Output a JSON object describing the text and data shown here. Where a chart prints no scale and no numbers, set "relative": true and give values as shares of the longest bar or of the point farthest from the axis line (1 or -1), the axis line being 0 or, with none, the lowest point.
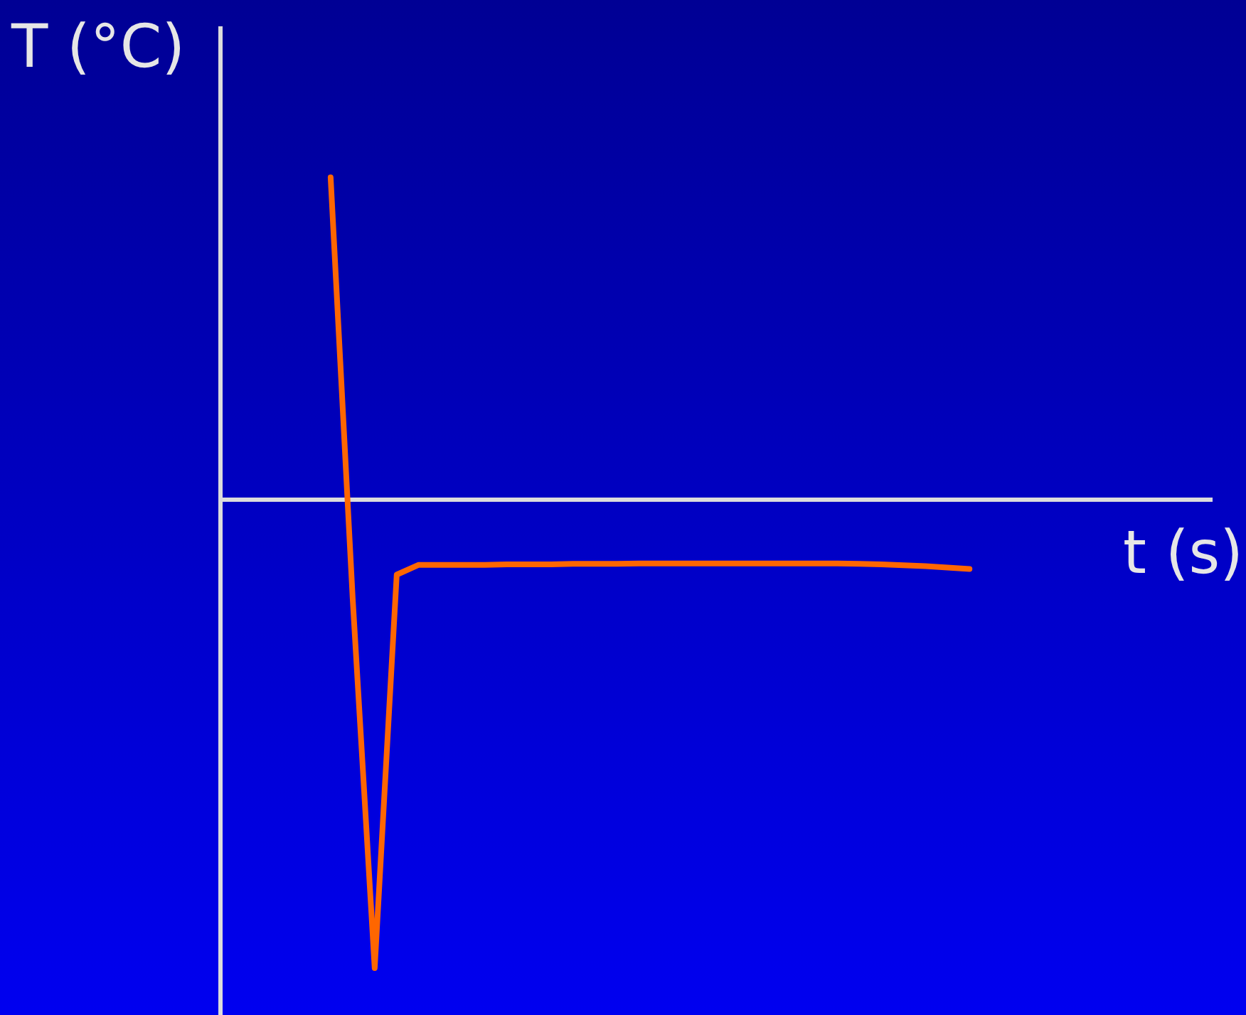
{
  "chart_data": {
    "type": "line",
    "relative": true,
    "xlabel": "t (s)",
    "ylabel": "T (°C)",
    "categories": [
      null,
      null,
      null,
      null,
      null,
      null,
      null,
      null,
      null,
      null,
      null,
      null,
      null,
      null,
      null,
      null,
      null,
      null,
      null,
      null,
      null,
      null,
      null,
      null,
      null,
      null,
      null,
      null,
      null,
      null,
      null,
      null,
      null,
      null,
      null,
      null,
      null,
      null,
      null,
      null,
      null,
      null,
      null,
      null,
      null,
      null
    ],
    "series": [
      {
        "color": "#ff6600",
        "values": [
          null,
          null,
          null,
          null,
          null,
          0.688,
          -0.21,
          -1,
          -0.16,
          -0.139,
          -0.139,
          -0.139,
          -0.139,
          -0.138,
          -0.138,
          -0.138,
          -0.137,
          -0.137,
          -0.137,
          -0.136,
          -0.136,
          -0.136,
          -0.136,
          -0.136,
          -0.136,
          -0.136,
          -0.136,
          -0.136,
          -0.136,
          -0.137,
          -0.138,
          -0.14,
          -0.142,
          -0.145,
          -0.148,
          null,
          null,
          null,
          null,
          null,
          null,
          null,
          null,
          null,
          null,
          null
        ]
      }
    ]
  }
}
